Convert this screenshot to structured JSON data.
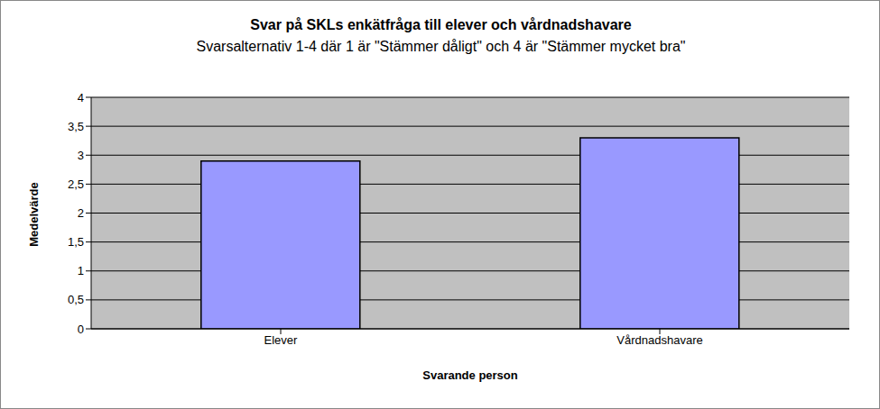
{
  "chart_data": {
    "type": "bar",
    "title": "Svar på SKLs enkätfråga till elever och vårdnadshavare",
    "subtitle": "Svarsalternativ 1-4 där 1 är \"Stämmer dåligt\" och 4 är \"Stämmer mycket bra\"",
    "x_label": "Svarande person",
    "y_label": "Medelvärde",
    "categories": [
      "Elever",
      "Vårdnadshavare"
    ],
    "values": [
      2.9,
      3.3
    ],
    "color": "#9999ff",
    "ylim": [
      0,
      4
    ],
    "yticks": [
      0,
      {
        "value": 0.5,
        "label": "0,5"
      },
      1,
      {
        "value": 1.5,
        "label": "1,5"
      },
      2,
      {
        "value": 2.5,
        "label": "2,5"
      },
      3,
      {
        "value": 3.5,
        "label": "3,5"
      },
      4
    ],
    "grid": true
  }
}
